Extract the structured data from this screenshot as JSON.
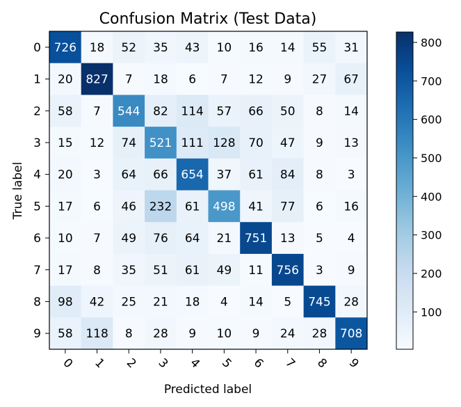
{
  "chart_data": {
    "type": "heatmap",
    "title": "Confusion Matrix (Test Data)",
    "xlabel": "Predicted label",
    "ylabel": "True label",
    "x_categories": [
      "0",
      "1",
      "2",
      "3",
      "4",
      "5",
      "6",
      "7",
      "8",
      "9"
    ],
    "y_categories": [
      "0",
      "1",
      "2",
      "3",
      "4",
      "5",
      "6",
      "7",
      "8",
      "9"
    ],
    "values": [
      [
        726,
        18,
        52,
        35,
        43,
        10,
        16,
        14,
        55,
        31
      ],
      [
        20,
        827,
        7,
        18,
        6,
        7,
        12,
        9,
        27,
        67
      ],
      [
        58,
        7,
        544,
        82,
        114,
        57,
        66,
        50,
        8,
        14
      ],
      [
        15,
        12,
        74,
        521,
        111,
        128,
        70,
        47,
        9,
        13
      ],
      [
        20,
        3,
        64,
        66,
        654,
        37,
        61,
        84,
        8,
        3
      ],
      [
        17,
        6,
        46,
        232,
        61,
        498,
        41,
        77,
        6,
        16
      ],
      [
        10,
        7,
        49,
        76,
        64,
        21,
        751,
        13,
        5,
        4
      ],
      [
        17,
        8,
        35,
        51,
        61,
        49,
        11,
        756,
        3,
        9
      ],
      [
        98,
        42,
        25,
        21,
        18,
        4,
        14,
        5,
        745,
        28
      ],
      [
        58,
        118,
        8,
        28,
        9,
        10,
        9,
        24,
        28,
        708
      ]
    ],
    "colormap": "Blues",
    "colorbar": {
      "min": 3,
      "max": 827,
      "ticks": [
        100,
        200,
        300,
        400,
        500,
        600,
        700,
        800
      ]
    },
    "text_threshold": 413.5
  }
}
